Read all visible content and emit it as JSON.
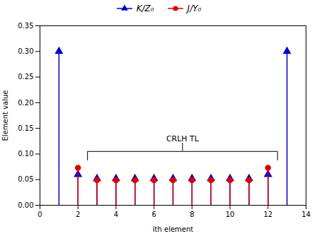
{
  "chart_data": {
    "type": "stem",
    "xlabel": "ith element",
    "ylabel": "Element value",
    "xlim": [
      0,
      14
    ],
    "ylim": [
      0.0,
      0.35
    ],
    "xticks": [
      0,
      2,
      4,
      6,
      8,
      10,
      12,
      14
    ],
    "yticks": [
      {
        "value": 0.0,
        "label": "0.00"
      },
      0.05,
      {
        "value": 0.1,
        "label": "0.10"
      },
      0.15,
      {
        "value": 0.2,
        "label": "0.20"
      },
      0.25,
      {
        "value": 0.3,
        "label": "0.30"
      },
      0.35
    ],
    "legend": "upper center",
    "series": [
      {
        "name": "K/Z₀",
        "color": "#0000cc",
        "marker": "triangle",
        "x": [
          1,
          2,
          3,
          4,
          5,
          6,
          7,
          8,
          9,
          10,
          11,
          12,
          13
        ],
        "values": [
          0.3,
          0.06,
          0.052,
          0.052,
          0.052,
          0.052,
          0.052,
          0.052,
          0.052,
          0.052,
          0.052,
          0.06,
          0.3
        ]
      },
      {
        "name": "J/Y₀",
        "color": "#dd0000",
        "marker": "circle",
        "x": [
          2,
          3,
          4,
          5,
          6,
          7,
          8,
          9,
          10,
          11,
          12
        ],
        "values": [
          0.073,
          0.049,
          0.049,
          0.049,
          0.049,
          0.049,
          0.049,
          0.049,
          0.049,
          0.049,
          0.073
        ]
      }
    ],
    "annotations": [
      {
        "text": "CRLH TL",
        "x": 7.5,
        "y": 0.125,
        "bracket": {
          "left": 2.5,
          "right": 12.5,
          "bottom": 0.088,
          "top": 0.105,
          "line_top": 0.122
        }
      }
    ]
  }
}
